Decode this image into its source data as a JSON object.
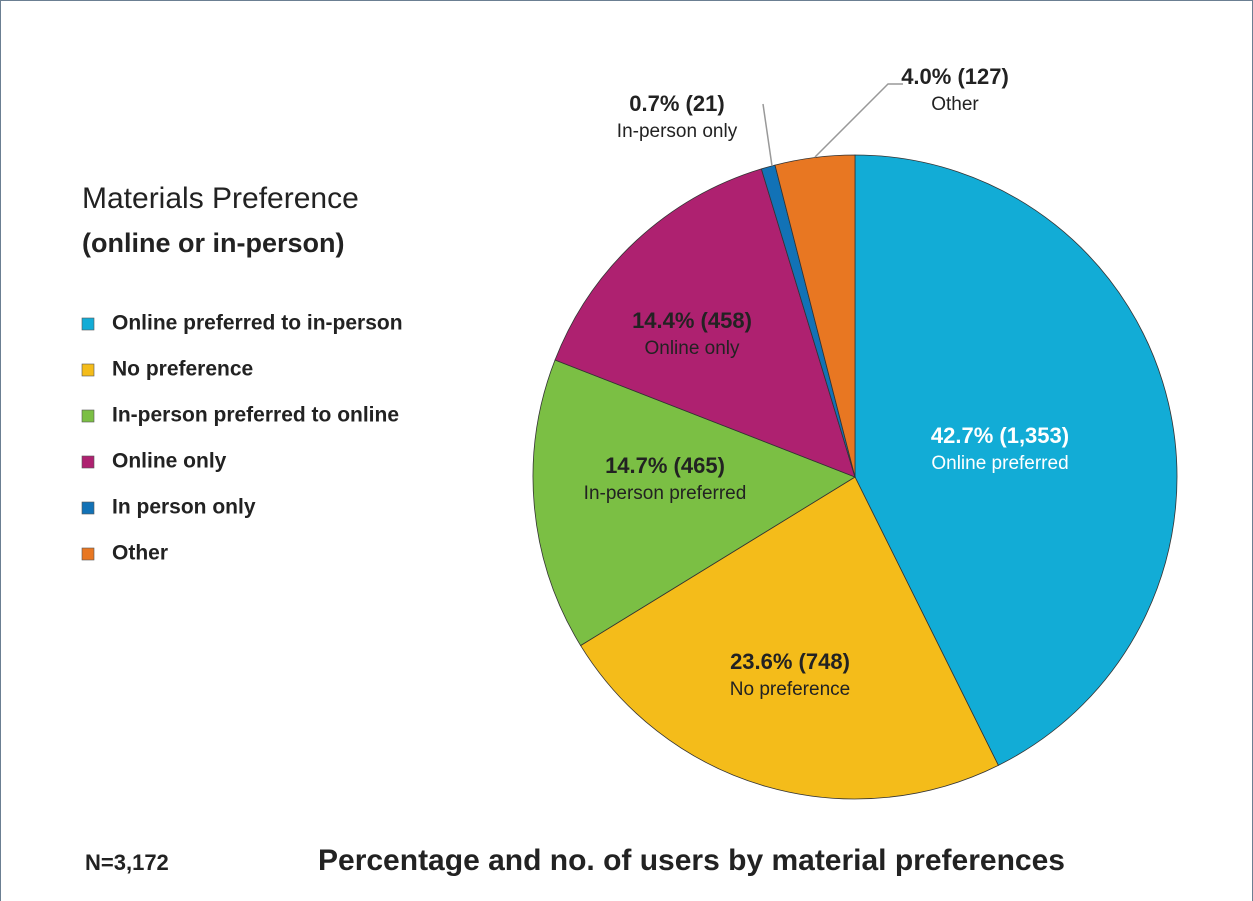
{
  "chart_data": {
    "type": "pie",
    "title": "Materials Preference",
    "subtitle": "(online or in-person)",
    "categories": [
      "Online preferred to in-person",
      "No preference",
      "In-person preferred to online",
      "Online only",
      "In person only",
      "Other"
    ],
    "values": [
      42.7,
      23.6,
      14.7,
      14.4,
      0.7,
      4.0
    ],
    "value_labels": [
      "42.7% (1,353)",
      "23.6% (748)",
      "14.7% (465)",
      "14.4% (458)",
      "0.7% (21)",
      "4.0% (127)"
    ],
    "slice_labels": [
      "Online preferred",
      "No preference",
      "In-person preferred",
      "Online only",
      "In-person only",
      "Other"
    ],
    "colors": [
      "#12acd6",
      "#f4bc1a",
      "#7bbf44",
      "#ae2170",
      "#1272b6",
      "#e87722"
    ],
    "legend": "left",
    "note": "N=3,172",
    "caption": "Percentage and no. of users by material preferences"
  }
}
